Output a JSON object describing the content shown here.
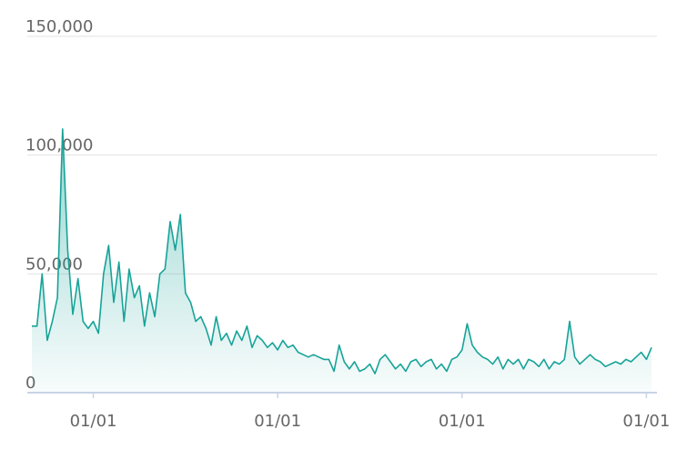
{
  "chart_data": {
    "type": "area",
    "color": "#17a398",
    "categories": [
      null,
      null,
      null,
      null,
      null,
      null,
      null,
      null,
      null,
      null,
      null,
      null,
      "01/01",
      null,
      null,
      null,
      null,
      null,
      null,
      null,
      null,
      null,
      null,
      null,
      null,
      null,
      null,
      null,
      null,
      null,
      null,
      null,
      null,
      null,
      null,
      null,
      null,
      null,
      null,
      null,
      null,
      null,
      null,
      null,
      null,
      null,
      null,
      null,
      "01/01",
      null,
      null,
      null,
      null,
      null,
      null,
      null,
      null,
      null,
      null,
      null,
      null,
      null,
      null,
      null,
      null,
      null,
      null,
      null,
      null,
      null,
      null,
      null,
      null,
      null,
      null,
      null,
      null,
      null,
      null,
      null,
      null,
      null,
      null,
      null,
      "01/01",
      null,
      null,
      null,
      null,
      null,
      null,
      null,
      null,
      null,
      null,
      null,
      null,
      null,
      null,
      null,
      null,
      null,
      null,
      null,
      null,
      null,
      null,
      null,
      null,
      null,
      null,
      null,
      null,
      null,
      null,
      null,
      null,
      null,
      null,
      null,
      "01/01",
      null
    ],
    "values": [
      28000,
      28000,
      50000,
      22000,
      30000,
      40000,
      111000,
      60000,
      33000,
      48000,
      30000,
      27000,
      30000,
      25000,
      50000,
      62000,
      38000,
      55000,
      30000,
      52000,
      40000,
      45000,
      28000,
      42000,
      32000,
      50000,
      52000,
      72000,
      60000,
      75000,
      42000,
      38000,
      30000,
      32000,
      27000,
      20000,
      32000,
      22000,
      25000,
      20000,
      26000,
      22000,
      28000,
      19000,
      24000,
      22000,
      19000,
      21000,
      18000,
      22000,
      19000,
      20000,
      17000,
      16000,
      15000,
      16000,
      15000,
      14000,
      14000,
      9000,
      20000,
      13000,
      10000,
      13000,
      9000,
      10000,
      12000,
      8000,
      14000,
      16000,
      13000,
      10000,
      12000,
      9000,
      13000,
      14000,
      11000,
      13000,
      14000,
      10000,
      12000,
      9000,
      14000,
      15000,
      18000,
      29000,
      20000,
      17000,
      15000,
      14000,
      12000,
      15000,
      10000,
      14000,
      12000,
      14000,
      10000,
      14000,
      13000,
      11000,
      14000,
      10000,
      13000,
      12000,
      14000,
      30000,
      15000,
      12000,
      14000,
      16000,
      14000,
      13000,
      11000,
      12000,
      13000,
      12000,
      14000,
      13000,
      15000,
      17000,
      14000,
      19000
    ],
    "ylim": [
      0,
      150000
    ],
    "yticks": [
      0,
      {
        "value": 50000,
        "label": "50,000"
      },
      {
        "value": 100000,
        "label": "100,000"
      },
      {
        "value": 150000,
        "label": "150,000"
      }
    ],
    "grid": true
  }
}
